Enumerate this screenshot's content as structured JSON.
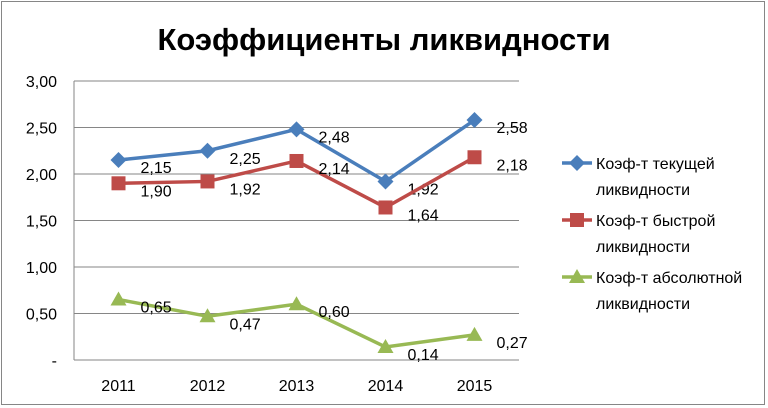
{
  "chart_data": {
    "type": "line",
    "title": "Коэффициенты ликвидности",
    "categories": [
      "2011",
      "2012",
      "2013",
      "2014",
      "2015"
    ],
    "ylim": [
      0,
      3
    ],
    "yticks": [
      0,
      0.5,
      1,
      1.5,
      2,
      2.5,
      3
    ],
    "ytick_labels": [
      "-",
      "0,50",
      "1,00",
      "1,50",
      "2,00",
      "2,50",
      "3,00"
    ],
    "grid": true,
    "legend_position": "right",
    "series": [
      {
        "name": "Коэф-т текущей ликвидности",
        "legend_lines": [
          "Коэф-т текущей",
          "ликвидности"
        ],
        "color": "#4a7ebb",
        "marker": "diamond",
        "values": [
          2.15,
          2.25,
          2.48,
          1.92,
          2.58
        ],
        "labels": [
          "2,15",
          "2,25",
          "2,48",
          "1,92",
          "2,58"
        ]
      },
      {
        "name": "Коэф-т быстрой ликвидности",
        "legend_lines": [
          "Коэф-т быстрой",
          "ликвидности"
        ],
        "color": "#be4b48",
        "marker": "square",
        "values": [
          1.9,
          1.92,
          2.14,
          1.64,
          2.18
        ],
        "labels": [
          "1,90",
          "1,92",
          "2,14",
          "1,64",
          "2,18"
        ]
      },
      {
        "name": "Коэф-т абсолютной ликвидности",
        "legend_lines": [
          "Коэф-т абсолютной",
          "ликвидности"
        ],
        "color": "#98b954",
        "marker": "triangle",
        "values": [
          0.65,
          0.47,
          0.6,
          0.14,
          0.27
        ],
        "labels": [
          "0,65",
          "0,47",
          "0,60",
          "0,14",
          "0,27"
        ]
      }
    ]
  }
}
